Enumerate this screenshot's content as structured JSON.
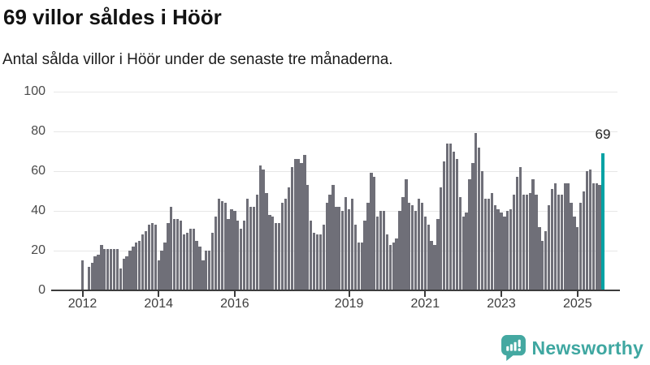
{
  "chart_data": {
    "type": "bar",
    "title": "69 villor såldes i Höör",
    "subtitle": "Antal sålda villor i Höör under de senaste tre månaderna.",
    "xlabel": "",
    "ylabel": "",
    "unit": "sålda villor (rullande 3 månader)",
    "ylim": [
      0,
      100
    ],
    "grid": "horizontal",
    "legend": "none",
    "start_month": "2012-01",
    "end_month": "2025-09",
    "yticks": [
      0,
      20,
      40,
      60,
      80,
      100
    ],
    "xticks": [
      {
        "label": "2012",
        "month_index": 0
      },
      {
        "label": "2014",
        "month_index": 24
      },
      {
        "label": "2016",
        "month_index": 48
      },
      {
        "label": "2019",
        "month_index": 84
      },
      {
        "label": "2021",
        "month_index": 108
      },
      {
        "label": "2023",
        "month_index": 132
      },
      {
        "label": "2025",
        "month_index": 156
      }
    ],
    "values": [
      15,
      0,
      12,
      14,
      17,
      18,
      23,
      21,
      21,
      21,
      21,
      21,
      11,
      16,
      17,
      20,
      22,
      24,
      25,
      28,
      30,
      33,
      34,
      33,
      15,
      20,
      24,
      34,
      42,
      36,
      36,
      35,
      28,
      29,
      31,
      31,
      25,
      22,
      15,
      20,
      20,
      29,
      37,
      46,
      45,
      44,
      36,
      41,
      40,
      35,
      31,
      35,
      46,
      42,
      42,
      48,
      63,
      61,
      49,
      38,
      37,
      34,
      34,
      44,
      46,
      52,
      62,
      66,
      66,
      64,
      68,
      53,
      35,
      29,
      28,
      28,
      33,
      44,
      48,
      53,
      42,
      42,
      40,
      47,
      41,
      46,
      33,
      24,
      24,
      35,
      44,
      59,
      57,
      37,
      40,
      40,
      28,
      23,
      24,
      26,
      40,
      47,
      56,
      44,
      43,
      40,
      46,
      44,
      37,
      33,
      25,
      23,
      36,
      52,
      65,
      74,
      74,
      70,
      66,
      47,
      37,
      39,
      56,
      64,
      79,
      72,
      60,
      46,
      46,
      49,
      43,
      41,
      39,
      37,
      40,
      41,
      48,
      57,
      62,
      48,
      48,
      49,
      56,
      48,
      32,
      25,
      30,
      43,
      51,
      54,
      48,
      48,
      54,
      54,
      44,
      37,
      32,
      44,
      50,
      60,
      61,
      54,
      54,
      53,
      69
    ],
    "highlight": {
      "index": 164,
      "value": 69,
      "label": "69"
    },
    "colors": {
      "bar": "#6f6f78",
      "highlight_bar": "#00a2a4",
      "gridline": "#e7e7e7",
      "axis": "#3c3c3c",
      "tick_label": "#4a4a4a"
    }
  },
  "footer": {
    "brand": "Newsworthy",
    "brand_color": "#3fa7a1",
    "logo_icon": "newsworthy-chart-bubble-icon"
  }
}
